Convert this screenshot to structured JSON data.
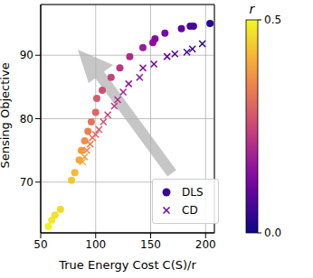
{
  "chart_data": {
    "type": "scatter",
    "x_label": "True Energy Cost C(S)/r",
    "y_label": "Sensing Objective",
    "xlim": [
      50,
      208
    ],
    "xticks": [
      50,
      100,
      150,
      200
    ],
    "ylim": [
      62,
      98
    ],
    "yticks": [
      70,
      80,
      90
    ],
    "grid": true,
    "legend": "lower right",
    "series": [
      {
        "name": "DLS",
        "marker": "o",
        "x": [
          57,
          60,
          63,
          68,
          78,
          81,
          85,
          87,
          90,
          93,
          96,
          100,
          101,
          106,
          114,
          122,
          131,
          143,
          152,
          154,
          163,
          178,
          186,
          189,
          204
        ],
        "values": [
          63,
          64,
          64.8,
          65.7,
          70.3,
          71.5,
          73.5,
          75,
          76.5,
          78,
          79.5,
          81,
          83.2,
          84.5,
          86.5,
          88,
          89.8,
          91.2,
          92,
          92.6,
          93.5,
          94.2,
          94.6,
          94.6,
          95
        ],
        "r": [
          0.49,
          0.48,
          0.47,
          0.46,
          0.44,
          0.42,
          0.4,
          0.38,
          0.36,
          0.34,
          0.32,
          0.3,
          0.28,
          0.26,
          0.24,
          0.22,
          0.2,
          0.17,
          0.15,
          0.14,
          0.12,
          0.09,
          0.07,
          0.06,
          0.03
        ]
      },
      {
        "name": "CD",
        "marker": "x",
        "x": [
          88,
          90,
          92,
          95,
          97,
          100,
          103,
          107,
          111,
          117,
          120,
          125,
          130,
          140,
          143,
          153,
          165,
          172,
          183,
          188,
          197
        ],
        "values": [
          73.2,
          74,
          75,
          76,
          77,
          77.5,
          78.3,
          79.5,
          80.6,
          82,
          83,
          84.2,
          85.5,
          86.5,
          88,
          88.6,
          89.8,
          90.2,
          90.5,
          91,
          91.8
        ],
        "r": [
          0.4,
          0.38,
          0.36,
          0.34,
          0.32,
          0.3,
          0.28,
          0.26,
          0.24,
          0.22,
          0.2,
          0.18,
          0.16,
          0.15,
          0.13,
          0.11,
          0.09,
          0.07,
          0.06,
          0.05,
          0.03
        ]
      }
    ],
    "colorbar": {
      "label": "r",
      "range": [
        0,
        0.5
      ],
      "ticks": [
        {
          "value": 0,
          "label": "0.0"
        },
        {
          "value": 0.5,
          "label": "0.5"
        }
      ]
    }
  }
}
